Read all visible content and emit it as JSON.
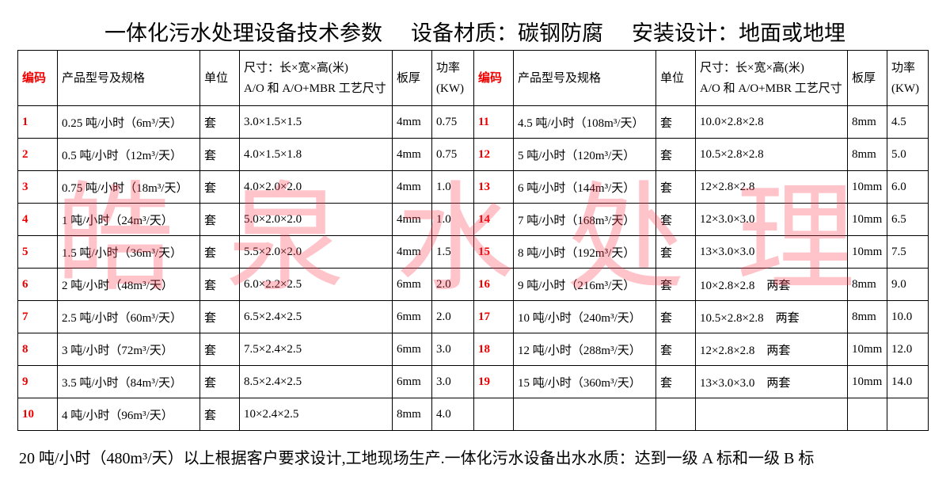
{
  "title": [
    "一体化污水处理设备技术参数",
    "设备材质：碳钢防腐",
    "安装设计：地面或地埋"
  ],
  "watermark": "皓泉水处理",
  "table": {
    "header": [
      [
        "编码"
      ],
      [
        "产品型号及规格"
      ],
      [
        "单位"
      ],
      [
        "尺寸：长×宽×高(米)",
        "A/O 和 A/O+MBR 工艺尺寸"
      ],
      [
        "板厚"
      ],
      [
        "功率",
        "(KW)"
      ],
      [
        "编码"
      ],
      [
        "产品型号及规格"
      ],
      [
        "单位"
      ],
      [
        "尺寸：长×宽×高(米)",
        "A/O 和 A/O+MBR 工艺尺寸"
      ],
      [
        "板厚"
      ],
      [
        "功率",
        "(KW)"
      ]
    ],
    "rows": [
      [
        "1",
        "0.25 吨/小时（6m³/天）",
        "套",
        "3.0×1.5×1.5",
        "4mm",
        "0.75",
        "11",
        "4.5 吨/小时（108m³/天）",
        "套",
        "10.0×2.8×2.8",
        "8mm",
        "4.5"
      ],
      [
        "2",
        "0.5 吨/小时（12m³/天）",
        "套",
        "4.0×1.5×1.8",
        "4mm",
        "0.75",
        "12",
        "5 吨/小时（120m³/天）",
        "套",
        "10.5×2.8×2.8",
        "8mm",
        "5.0"
      ],
      [
        "3",
        "0.75 吨/小时（18m³/天）",
        "套",
        "4.0×2.0×2.0",
        "4mm",
        "1.0",
        "13",
        "6 吨/小时（144m³/天）",
        "套",
        "12×2.8×2.8",
        "10mm",
        "6.0"
      ],
      [
        "4",
        "1 吨/小时（24m³/天）",
        "套",
        "5.0×2.0×2.0",
        "4mm",
        "1.0",
        "14",
        "7 吨/小时（168m³/天）",
        "套",
        "12×3.0×3.0",
        "10mm",
        "6.5"
      ],
      [
        "5",
        "1.5 吨/小时（36m³/天）",
        "套",
        "5.5×2.0×2.0",
        "4mm",
        "1.5",
        "15",
        "8 吨/小时（192m³/天）",
        "套",
        "13×3.0×3.0",
        "10mm",
        "7.5"
      ],
      [
        "6",
        "2 吨/小时（48m³/天）",
        "套",
        "6.0×2.2×2.5",
        "6mm",
        "2.0",
        "16",
        "9 吨/小时（216m³/天）",
        "套",
        "10×2.8×2.8　两套",
        "8mm",
        "9.0"
      ],
      [
        "7",
        "2.5 吨/小时（60m³/天）",
        "套",
        "6.5×2.4×2.5",
        "6mm",
        "2.0",
        "17",
        "10 吨/小时（240m³/天）",
        "套",
        "10.5×2.8×2.8　两套",
        "8mm",
        "10.0"
      ],
      [
        "8",
        "3 吨/小时（72m³/天）",
        "套",
        "7.5×2.4×2.5",
        "6mm",
        "3.0",
        "18",
        "12 吨/小时（288m³/天）",
        "套",
        "12×2.8×2.8　两套",
        "10mm",
        "12.0"
      ],
      [
        "9",
        "3.5 吨/小时（84m³/天）",
        "套",
        "8.5×2.4×2.5",
        "6mm",
        "3.0",
        "19",
        "15 吨/小时（360m³/天）",
        "套",
        "13×3.0×3.0　两套",
        "10mm",
        "14.0"
      ],
      [
        "10",
        "4 吨/小时（96m³/天）",
        "套",
        "10×2.4×2.5",
        "8mm",
        "4.0"
      ]
    ]
  },
  "footer": "20 吨/小时（480m³/天）以上根据客户要求设计,工地现场生产.一体化污水设备出水水质：达到一级 A 标和一级 B 标"
}
